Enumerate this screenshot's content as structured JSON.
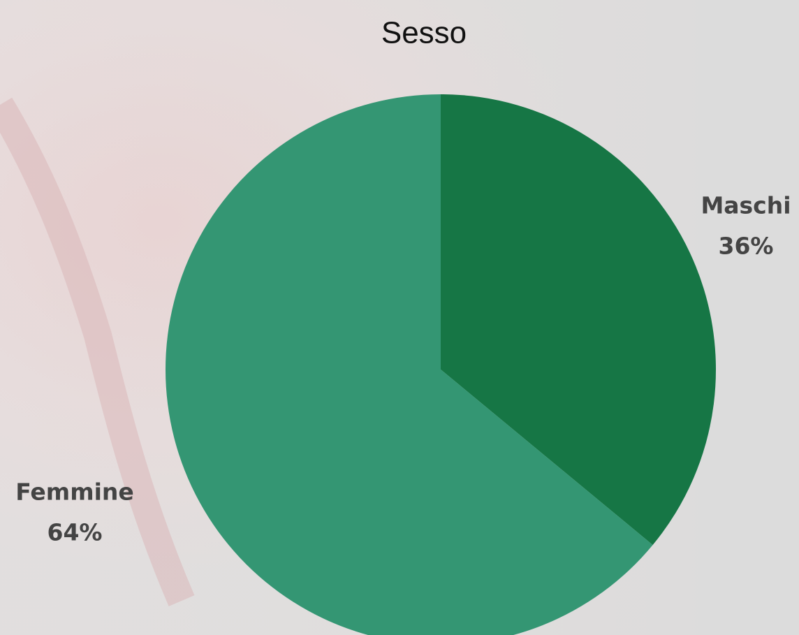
{
  "chart_data": {
    "type": "pie",
    "title": "Sesso",
    "categories": [
      "Maschi",
      "Femmine"
    ],
    "values": [
      36,
      64
    ],
    "value_labels": [
      "36%",
      "64%"
    ],
    "colors": [
      "#167645",
      "#349673"
    ]
  }
}
